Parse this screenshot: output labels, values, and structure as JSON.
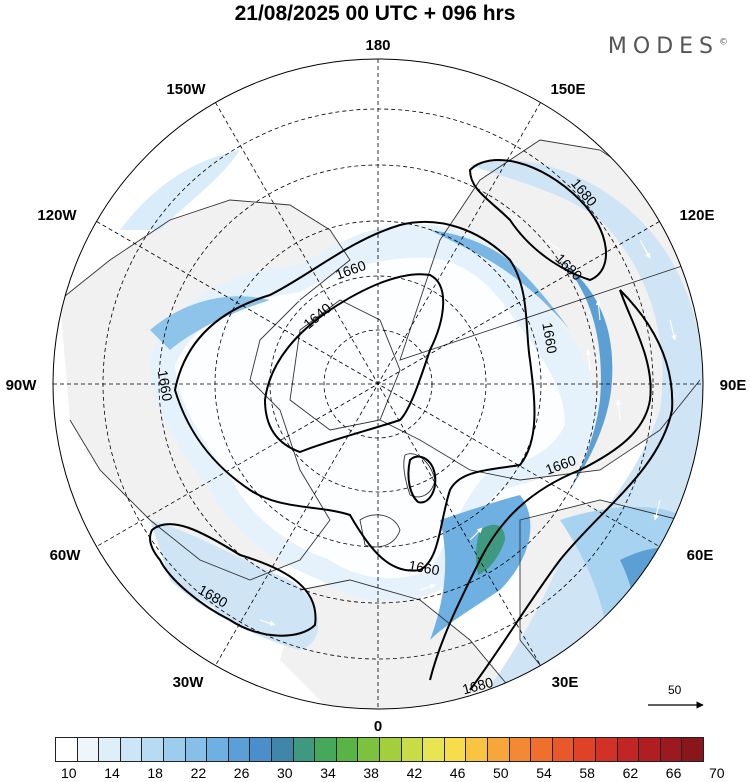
{
  "header": {
    "title": "21/08/2025  00 UTC  + 096 hrs"
  },
  "brand": {
    "name": "MODES",
    "mark": "©"
  },
  "map": {
    "projection": "north-polar-stereographic",
    "longitude_labels": [
      "180",
      "150E",
      "120E",
      "90E",
      "60E",
      "30E",
      "0",
      "30W",
      "60W",
      "90W",
      "120W",
      "150W"
    ],
    "contour_labels": [
      "1640",
      "1660",
      "1660",
      "1660",
      "1660",
      "1660",
      "1680",
      "1680",
      "1680",
      "1680"
    ],
    "colors": {
      "land": "#f2f2f2",
      "ocean": "#ffffff",
      "coast": "#333333",
      "grid": "#000000"
    }
  },
  "legend": {
    "reference_vector": "50",
    "colorbar_ticks": [
      "10",
      "14",
      "18",
      "22",
      "26",
      "30",
      "34",
      "38",
      "42",
      "46",
      "50",
      "54",
      "58",
      "62",
      "66",
      "70"
    ],
    "colorbar_colors": [
      "#ffffff",
      "#eef6fc",
      "#dfeffa",
      "#cce6f7",
      "#b6dbf3",
      "#9ccdee",
      "#86bfe8",
      "#6eb0e1",
      "#5a9fd6",
      "#4a8ecb",
      "#3f86a8",
      "#3f9980",
      "#46a85a",
      "#58b545",
      "#7cc23e",
      "#a3cf3d",
      "#c7dc47",
      "#e6e552",
      "#f7dd4b",
      "#f8c441",
      "#f7a63a",
      "#f38a33",
      "#ef6f2e",
      "#e8582a",
      "#df4227",
      "#d23125",
      "#c22624",
      "#b01e22",
      "#9c1a1f",
      "#88161b"
    ]
  }
}
